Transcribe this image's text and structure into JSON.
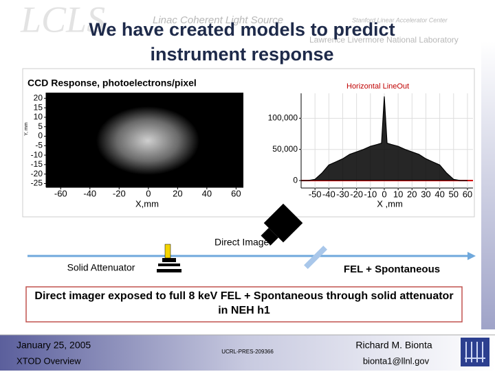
{
  "header": {
    "logo": "LCLS",
    "project": "Linac Coherent Light Source",
    "lab1": "Stanford Linear Accelerator Center",
    "lab2": "Lawrence Livermore National Laboratory"
  },
  "title": [
    "We have created models to predict",
    "instrument response"
  ],
  "image_panel": {
    "title": "CCD Response, photoelectrons/pixel",
    "xlabel": "X,mm",
    "ylabel": "Y, mm",
    "xlim": [
      -70,
      65
    ],
    "ylim": [
      -27,
      23
    ],
    "xticks": [
      -60,
      -40,
      -20,
      0,
      20,
      40,
      60
    ],
    "yticks": [
      20,
      15,
      10,
      5,
      0,
      -5,
      -10,
      -15,
      -20,
      -25
    ]
  },
  "chart_data": {
    "type": "line",
    "title": "Horizontal LineOut",
    "xlabel": "X ,mm",
    "x": [
      -60,
      -55,
      -50,
      -45,
      -40,
      -35,
      -30,
      -25,
      -20,
      -15,
      -10,
      -5,
      -2,
      0,
      2,
      5,
      10,
      15,
      20,
      25,
      30,
      35,
      40,
      45,
      50,
      55,
      60
    ],
    "series": [
      {
        "color": "#000000",
        "values": [
          0,
          0,
          2000,
          12000,
          25000,
          30000,
          35000,
          42000,
          46000,
          50000,
          55000,
          58000,
          60000,
          135000,
          60000,
          58000,
          55000,
          50000,
          46000,
          42000,
          35000,
          30000,
          25000,
          12000,
          2000,
          0,
          0
        ]
      }
    ],
    "xlim": [
      -60,
      64
    ],
    "ylim": [
      -12000,
      140000
    ],
    "xticks": [
      -50,
      -40,
      -30,
      -20,
      -10,
      0,
      10,
      20,
      30,
      40,
      50,
      60
    ],
    "yticks": [
      0,
      {
        "value": 50000,
        "label": "50,000"
      },
      {
        "value": 100000,
        "label": "100,000"
      }
    ],
    "baseline_color": "#d00000"
  },
  "diagram": {
    "imager": "Direct Imager",
    "attenuator": "Solid Attenuator",
    "beam": "FEL + Spontaneous"
  },
  "caption": "Direct imager exposed to full 8 keV FEL + Spontaneous through solid attenuator in NEH h1",
  "footer": {
    "date": "January 25, 2005",
    "event": "XTOD  Overview",
    "report": "UCRL-PRES-209366",
    "author": "Richard M. Bionta",
    "email": "bionta1@llnl.gov"
  }
}
